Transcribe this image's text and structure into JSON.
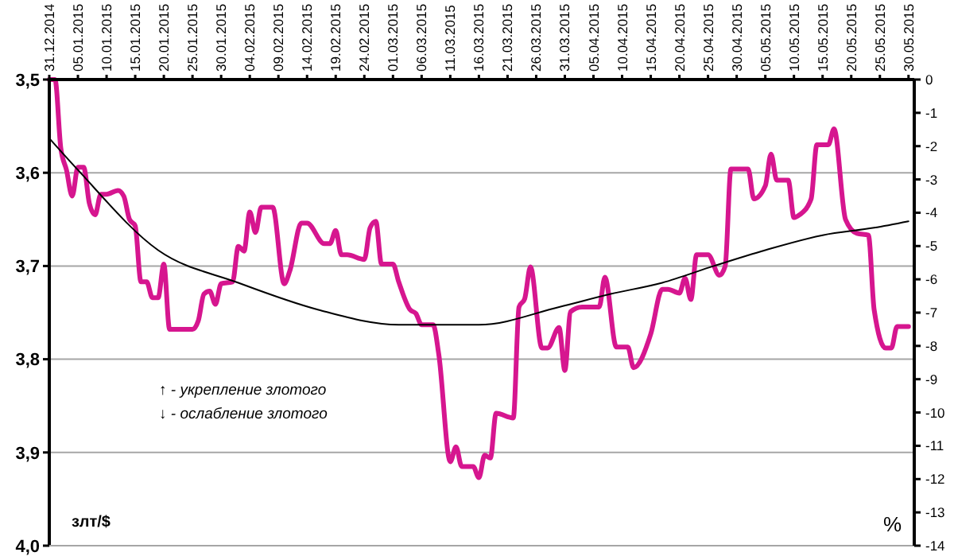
{
  "chart_data": {
    "type": "line",
    "ylabel": "злт/$",
    "y2label": "%",
    "annotations": [
      "↑ - укрепление злотого",
      "↓ - ослабление злотого"
    ],
    "xlim": [
      "2014-12-31",
      "2015-05-31"
    ],
    "xticks": [
      {
        "value": "2014-12-31",
        "label": "31.12.2014"
      },
      {
        "value": "2015-01-05",
        "label": "05.01.2015"
      },
      {
        "value": "2015-01-10",
        "label": "10.01.2015"
      },
      {
        "value": "2015-01-15",
        "label": "15.01.2015"
      },
      {
        "value": "2015-01-20",
        "label": "20.01.2015"
      },
      {
        "value": "2015-01-25",
        "label": "25.01.2015"
      },
      {
        "value": "2015-01-30",
        "label": "30.01.2015"
      },
      {
        "value": "2015-02-04",
        "label": "04.02.2015"
      },
      {
        "value": "2015-02-09",
        "label": "09.02.2015"
      },
      {
        "value": "2015-02-14",
        "label": "14.02.2015"
      },
      {
        "value": "2015-02-19",
        "label": "19.02.2015"
      },
      {
        "value": "2015-02-24",
        "label": "24.02.2015"
      },
      {
        "value": "2015-03-01",
        "label": "01.03.2015"
      },
      {
        "value": "2015-03-06",
        "label": "06.03.2015"
      },
      {
        "value": "2015-03-11",
        "label": "11.03.2015"
      },
      {
        "value": "2015-03-16",
        "label": "16.03.2015"
      },
      {
        "value": "2015-03-21",
        "label": "21.03.2015"
      },
      {
        "value": "2015-03-26",
        "label": "26.03.2015"
      },
      {
        "value": "2015-03-31",
        "label": "31.03.2015"
      },
      {
        "value": "2015-04-05",
        "label": "05.04.2015"
      },
      {
        "value": "2015-04-10",
        "label": "10.04.2015"
      },
      {
        "value": "2015-04-15",
        "label": "15.04.2015"
      },
      {
        "value": "2015-04-20",
        "label": "20.04.2015"
      },
      {
        "value": "2015-04-25",
        "label": "25.04.2015"
      },
      {
        "value": "2015-04-30",
        "label": "30.04.2015"
      },
      {
        "value": "2015-05-05",
        "label": "05.05.2015"
      },
      {
        "value": "2015-05-10",
        "label": "10.05.2015"
      },
      {
        "value": "2015-05-15",
        "label": "15.05.2015"
      },
      {
        "value": "2015-05-20",
        "label": "20.05.2015"
      },
      {
        "value": "2015-05-25",
        "label": "25.05.2015"
      },
      {
        "value": "2015-05-30",
        "label": "30.05.2015"
      }
    ],
    "ylim": [
      4.0,
      3.5
    ],
    "yticks": [
      {
        "value": 3.5,
        "label": "3,5"
      },
      {
        "value": 3.6,
        "label": "3,6"
      },
      {
        "value": 3.7,
        "label": "3,7"
      },
      {
        "value": 3.8,
        "label": "3,8"
      },
      {
        "value": 3.9,
        "label": "3,9"
      },
      {
        "value": 4.0,
        "label": "4,0"
      }
    ],
    "y2lim": [
      -14,
      0
    ],
    "y2ticks": [
      0,
      -1,
      -2,
      -3,
      -4,
      -5,
      -6,
      -7,
      -8,
      -9,
      -10,
      -11,
      -12,
      -13,
      -14
    ],
    "grid": "y",
    "line_style": "solid",
    "marker": "none",
    "series": [
      {
        "color": "#d6168f",
        "x": [
          "2014-12-31",
          "2015-01-01",
          "2015-01-02",
          "2015-01-03",
          "2015-01-04",
          "2015-01-05",
          "2015-01-06",
          "2015-01-07",
          "2015-01-08",
          "2015-01-09",
          "2015-01-10",
          "2015-01-12",
          "2015-01-13",
          "2015-01-14",
          "2015-01-15",
          "2015-01-16",
          "2015-01-17",
          "2015-01-18",
          "2015-01-19",
          "2015-01-20",
          "2015-01-21",
          "2015-01-25",
          "2015-01-26",
          "2015-01-27",
          "2015-01-28",
          "2015-01-29",
          "2015-01-30",
          "2015-02-01",
          "2015-02-02",
          "2015-02-03",
          "2015-02-04",
          "2015-02-05",
          "2015-02-06",
          "2015-02-08",
          "2015-02-10",
          "2015-02-11",
          "2015-02-13",
          "2015-02-14",
          "2015-02-17",
          "2015-02-18",
          "2015-02-19",
          "2015-02-20",
          "2015-02-21",
          "2015-02-24",
          "2015-02-25",
          "2015-02-26",
          "2015-02-27",
          "2015-03-01",
          "2015-03-02",
          "2015-03-04",
          "2015-03-05",
          "2015-03-06",
          "2015-03-08",
          "2015-03-09",
          "2015-03-11",
          "2015-03-12",
          "2015-03-13",
          "2015-03-15",
          "2015-03-16",
          "2015-03-17",
          "2015-03-18",
          "2015-03-19",
          "2015-03-22",
          "2015-03-23",
          "2015-03-24",
          "2015-03-25",
          "2015-03-27",
          "2015-03-28",
          "2015-03-30",
          "2015-03-31",
          "2015-04-01",
          "2015-04-03",
          "2015-04-06",
          "2015-04-07",
          "2015-04-09",
          "2015-04-11",
          "2015-04-12",
          "2015-04-15",
          "2015-04-17",
          "2015-04-18",
          "2015-04-20",
          "2015-04-21",
          "2015-04-22",
          "2015-04-23",
          "2015-04-25",
          "2015-04-27",
          "2015-04-28",
          "2015-04-29",
          "2015-05-02",
          "2015-05-03",
          "2015-05-05",
          "2015-05-06",
          "2015-05-07",
          "2015-05-09",
          "2015-05-10",
          "2015-05-11",
          "2015-05-13",
          "2015-05-14",
          "2015-05-16",
          "2015-05-17",
          "2015-05-19",
          "2015-05-21",
          "2015-05-23",
          "2015-05-24",
          "2015-05-26",
          "2015-05-27",
          "2015-05-28",
          "2015-05-30"
        ],
        "values": [
          3.5,
          3.5,
          3.573,
          3.597,
          3.625,
          3.594,
          3.594,
          3.633,
          3.645,
          3.623,
          3.623,
          3.619,
          3.625,
          3.65,
          3.657,
          3.717,
          3.717,
          3.734,
          3.734,
          3.698,
          3.768,
          3.768,
          3.759,
          3.73,
          3.727,
          3.741,
          3.719,
          3.717,
          3.679,
          3.684,
          3.642,
          3.664,
          3.637,
          3.637,
          3.719,
          3.705,
          3.654,
          3.654,
          3.676,
          3.676,
          3.662,
          3.688,
          3.688,
          3.693,
          3.659,
          3.652,
          3.698,
          3.698,
          3.717,
          3.747,
          3.751,
          3.763,
          3.763,
          3.795,
          3.91,
          3.894,
          3.915,
          3.915,
          3.927,
          3.903,
          3.906,
          3.858,
          3.863,
          3.744,
          3.735,
          3.701,
          3.788,
          3.788,
          3.766,
          3.812,
          3.749,
          3.744,
          3.744,
          3.712,
          3.787,
          3.787,
          3.809,
          3.773,
          3.725,
          3.725,
          3.729,
          3.713,
          3.736,
          3.688,
          3.688,
          3.71,
          3.7,
          3.596,
          3.596,
          3.628,
          3.614,
          3.58,
          3.608,
          3.608,
          3.648,
          3.645,
          3.628,
          3.57,
          3.57,
          3.553,
          3.65,
          3.665,
          3.667,
          3.747,
          3.788,
          3.788,
          3.765,
          3.765
        ]
      },
      {
        "color": "#000000",
        "x": [
          "2014-12-31",
          "2015-01-05",
          "2015-01-19",
          "2015-02-02",
          "2015-02-16",
          "2015-03-02",
          "2015-03-16",
          "2015-03-30",
          "2015-04-08",
          "2015-04-17",
          "2015-04-26",
          "2015-05-05",
          "2015-05-15",
          "2015-05-24",
          "2015-05-30"
        ],
        "values": [
          3.563,
          3.597,
          3.683,
          3.718,
          3.747,
          3.763,
          3.763,
          3.744,
          3.73,
          3.718,
          3.7,
          3.683,
          3.667,
          3.659,
          3.652
        ]
      }
    ]
  }
}
